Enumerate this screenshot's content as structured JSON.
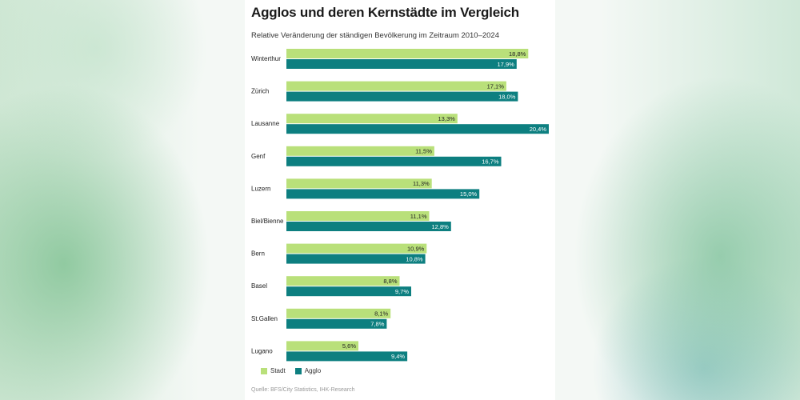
{
  "colors": {
    "stadt": "#b9e07a",
    "agglo": "#0d7f80"
  },
  "chart_data": {
    "type": "bar",
    "orientation": "horizontal",
    "title": "Agglos und deren Kernstädte im Vergleich",
    "subtitle": "Relative Veränderung der ständigen Bevölkerung im Zeitraum 2010–2024",
    "source": "Quelle: BFS/City Statistics, IHK-Research",
    "categories": [
      "Winterthur",
      "Zürich",
      "Lausanne",
      "Genf",
      "Luzern",
      "Biel/Bienne",
      "Bern",
      "Basel",
      "St.Gallen",
      "Lugano"
    ],
    "series": [
      {
        "name": "Stadt",
        "values": [
          18.8,
          17.1,
          13.3,
          11.5,
          11.3,
          11.1,
          10.9,
          8.8,
          8.1,
          5.6
        ],
        "labels": [
          "18,8%",
          "17,1%",
          "13,3%",
          "11,5%",
          "11,3%",
          "11,1%",
          "10,9%",
          "8,8%",
          "8,1%",
          "5,6%"
        ]
      },
      {
        "name": "Agglo",
        "values": [
          17.9,
          18.0,
          20.4,
          16.7,
          15.0,
          12.8,
          10.8,
          9.7,
          7.8,
          9.4
        ],
        "labels": [
          "17,9%",
          "18,0%",
          "20,4%",
          "16,7%",
          "15,0%",
          "12,8%",
          "10,8%",
          "9,7%",
          "7,8%",
          "9,4%"
        ]
      }
    ],
    "xlim": [
      0,
      20.4
    ],
    "grid": false,
    "legend": "bottom-left"
  }
}
